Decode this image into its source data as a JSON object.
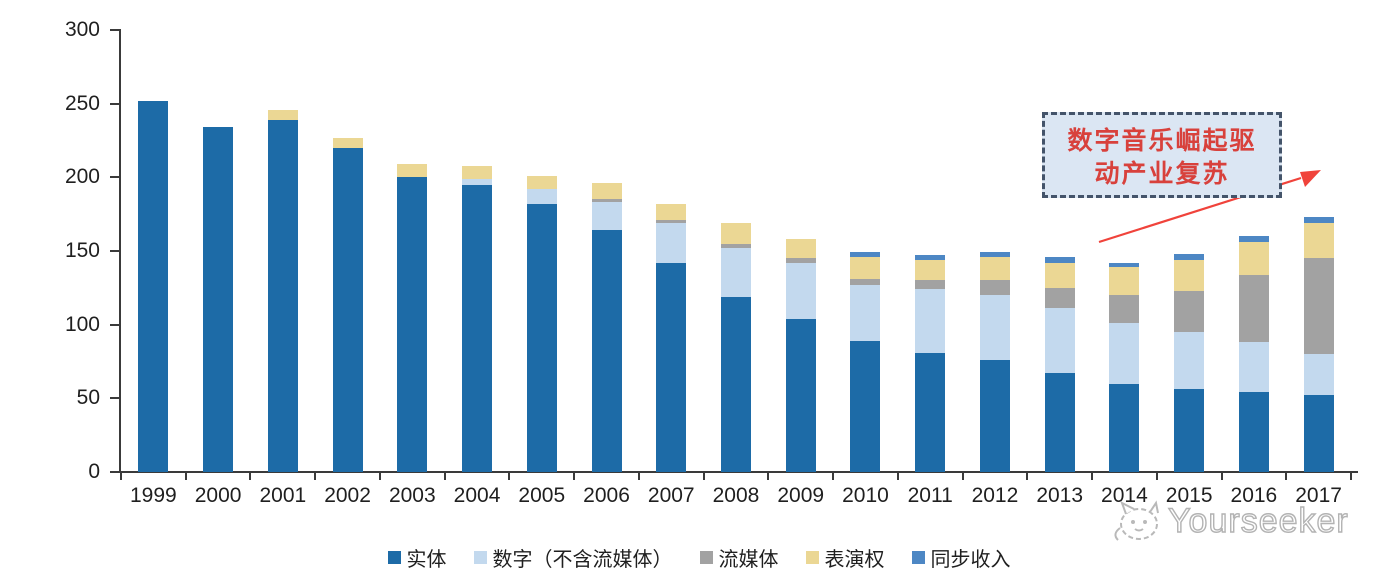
{
  "chart_data": {
    "type": "bar",
    "stacked": true,
    "title": "",
    "xlabel": "",
    "ylabel": "",
    "categories": [
      "1999",
      "2000",
      "2001",
      "2002",
      "2003",
      "2004",
      "2005",
      "2006",
      "2007",
      "2008",
      "2009",
      "2010",
      "2011",
      "2012",
      "2013",
      "2014",
      "2015",
      "2016",
      "2017"
    ],
    "series": [
      {
        "name": "实体",
        "color": "#1d6ba7",
        "values": [
          252,
          234,
          239,
          220,
          200,
          195,
          182,
          164,
          142,
          119,
          104,
          89,
          81,
          76,
          67,
          60,
          56,
          54,
          52
        ]
      },
      {
        "name": "数字（不含流媒体）",
        "color": "#c3d9ee",
        "values": [
          0,
          0,
          0,
          0,
          0,
          4,
          10,
          19,
          27,
          33,
          38,
          38,
          43,
          44,
          44,
          41,
          39,
          34,
          28
        ]
      },
      {
        "name": "流媒体",
        "color": "#a2a2a2",
        "values": [
          0,
          0,
          0,
          0,
          0,
          0,
          0,
          2,
          2,
          3,
          3,
          4,
          6,
          10,
          14,
          19,
          28,
          46,
          65
        ]
      },
      {
        "name": "表演权",
        "color": "#ebd794",
        "values": [
          0,
          0,
          7,
          7,
          9,
          9,
          9,
          11,
          11,
          14,
          13,
          15,
          14,
          16,
          17,
          19,
          21,
          22,
          24
        ]
      },
      {
        "name": "同步收入",
        "color": "#4d87c4",
        "values": [
          0,
          0,
          0,
          0,
          0,
          0,
          0,
          0,
          0,
          0,
          0,
          3,
          3,
          3,
          4,
          3,
          4,
          4,
          4
        ]
      }
    ],
    "ylim": [
      0,
      300
    ],
    "yticks": [
      0,
      50,
      100,
      150,
      200,
      250,
      300
    ],
    "grid": false,
    "legend_position": "bottom"
  },
  "annotation": {
    "line1": "数字音乐崛起驱",
    "line2": "动产业复苏",
    "text_color": "#d8413c",
    "box_fill": "#dbe6f3",
    "border_color": "#44546a",
    "arrow_color": "#f0433b"
  },
  "watermark": {
    "text": "Yourseeker",
    "logo": "cat-logo",
    "color": "#b3b3b3"
  }
}
